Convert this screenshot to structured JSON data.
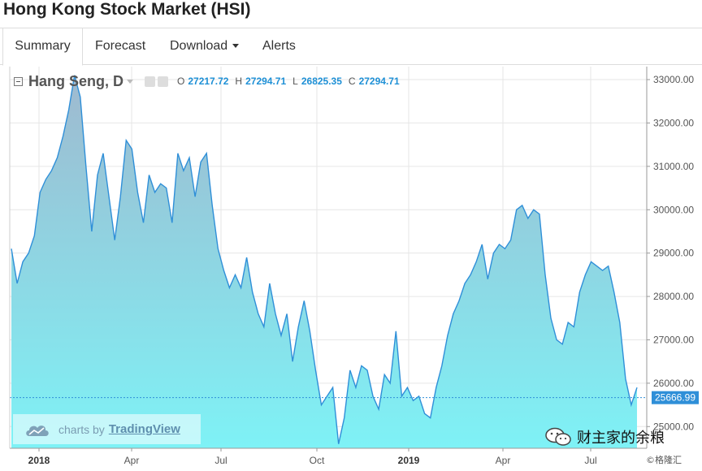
{
  "page": {
    "title": "Hong Kong Stock Market (HSI)"
  },
  "tabs": [
    {
      "label": "Summary",
      "active": true
    },
    {
      "label": "Forecast",
      "active": false
    },
    {
      "label": "Download",
      "active": false,
      "dropdown": true
    },
    {
      "label": "Alerts",
      "active": false
    }
  ],
  "legend": {
    "symbol": "Hang Seng, D",
    "open_label": "O",
    "open": "27217.72",
    "high_label": "H",
    "high": "27294.71",
    "low_label": "L",
    "low": "26825.35",
    "close_label": "C",
    "close": "27294.71"
  },
  "watermark": {
    "text": "charts by",
    "link": "TradingView"
  },
  "brand": {
    "text": "财主家的余粮",
    "credit": "©格隆汇"
  },
  "colors": {
    "line": "#2f8fd8",
    "fill_top": "#9fb9cf",
    "fill_bottom": "#7ef2f6",
    "accent": "#1e90d6"
  },
  "icons": [
    "collapse-icon",
    "settings-icon",
    "cloud-icon",
    "wechat-icon",
    "chevron-down-icon"
  ],
  "chart_data": {
    "type": "area",
    "ylim": [
      24500,
      33300
    ],
    "y_ticks": [
      "33000.00",
      "32000.00",
      "31000.00",
      "30000.00",
      "29000.00",
      "28000.00",
      "27000.00",
      "26000.00",
      "25000.00"
    ],
    "x_tick_labels": [
      "2018",
      "Apr",
      "Jul",
      "Oct",
      "2019",
      "Apr",
      "Jul"
    ],
    "last_price_label": "25666.99",
    "last_price": 25666.99,
    "series": [
      {
        "values": [
          29100,
          28300,
          28800,
          29000,
          29400,
          30400,
          30700,
          30900,
          31200,
          31700,
          32300,
          33100,
          32600,
          31000,
          29500,
          30800,
          31300,
          30300,
          29300,
          30300,
          31600,
          31400,
          30400,
          29700,
          30800,
          30400,
          30600,
          30500,
          29700,
          31300,
          30900,
          31200,
          30300,
          31100,
          31300,
          30100,
          29100,
          28600,
          28200,
          28500,
          28200,
          28900,
          28100,
          27600,
          27300,
          28300,
          27600,
          27100,
          27600,
          26500,
          27300,
          27900,
          27200,
          26300,
          25500,
          25700,
          25900,
          24600,
          25200,
          26300,
          25900,
          26400,
          26300,
          25700,
          25400,
          26200,
          26000,
          27200,
          25700,
          25900,
          25600,
          25700,
          25300,
          25200,
          25900,
          26400,
          27100,
          27600,
          27900,
          28300,
          28500,
          28800,
          29200,
          28400,
          29000,
          29200,
          29100,
          29300,
          30000,
          30100,
          29800,
          30000,
          29900,
          28500,
          27500,
          27000,
          26900,
          27400,
          27300,
          28100,
          28500,
          28800,
          28700,
          28600,
          28700,
          28100,
          27400,
          26100,
          25500,
          25900
        ]
      }
    ]
  }
}
